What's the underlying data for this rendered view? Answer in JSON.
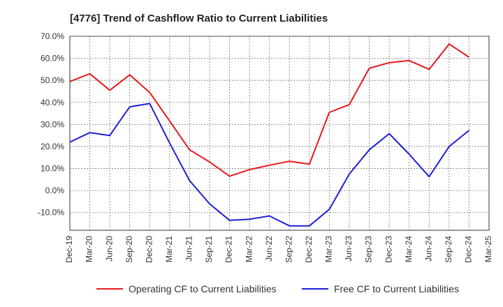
{
  "chart_data": {
    "type": "line",
    "title": "[4776]  Trend of Cashflow Ratio to Current Liabilities",
    "xlabel": "",
    "ylabel": "",
    "ylim": [
      -18,
      70
    ],
    "y_ticks": [
      "70.0%",
      "60.0%",
      "50.0%",
      "40.0%",
      "30.0%",
      "20.0%",
      "10.0%",
      "0.0%",
      "-10.0%"
    ],
    "y_tick_values": [
      70,
      60,
      50,
      40,
      30,
      20,
      10,
      0,
      -10
    ],
    "x_ticks": [
      "Dec-19",
      "Mar-20",
      "Jun-20",
      "Sep-20",
      "Dec-20",
      "Mar-21",
      "Jun-21",
      "Sep-21",
      "Dec-21",
      "Mar-22",
      "Jun-22",
      "Sep-22",
      "Dec-22",
      "Mar-23",
      "Jun-23",
      "Sep-23",
      "Dec-23",
      "Mar-24",
      "Jun-24",
      "Sep-24",
      "Dec-24",
      "Mar-25"
    ],
    "grid": true,
    "legend_position": "bottom",
    "series": [
      {
        "name": "Operating CF to Current Liabilities",
        "color": "#e41a1c",
        "values": [
          49.5,
          53.0,
          45.5,
          52.5,
          44.5,
          31.5,
          18.5,
          13.0,
          6.5,
          9.5,
          11.5,
          13.3,
          12.0,
          35.5,
          39.0,
          55.5,
          58.0,
          59.0,
          55.0,
          66.5,
          60.5
        ]
      },
      {
        "name": "Free CF to Current Liabilities",
        "color": "#1f1fd6",
        "values": [
          22.0,
          26.3,
          25.0,
          38.0,
          39.5,
          21.5,
          4.5,
          -6.0,
          -13.5,
          -13.0,
          -11.5,
          -16.0,
          -16.0,
          -8.5,
          7.5,
          18.5,
          25.8,
          16.5,
          6.3,
          20.0,
          27.3
        ]
      }
    ]
  }
}
